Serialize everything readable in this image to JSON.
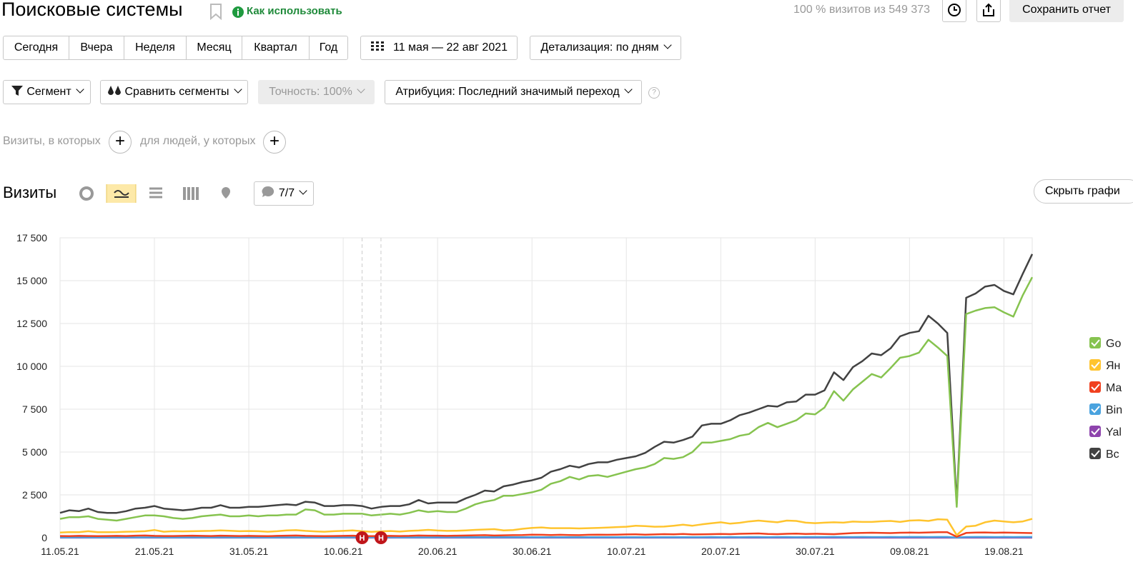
{
  "header": {
    "title": "Поисковые системы",
    "help_link": "Как использовать",
    "visits_share": "100 % визитов из 549 373",
    "save_button": "Сохранить отчет"
  },
  "periods": [
    "Сегодня",
    "Вчера",
    "Неделя",
    "Месяц",
    "Квартал",
    "Год"
  ],
  "date_range": "11 мая — 22 авг 2021",
  "detail": "Детализация: по дням",
  "filters": {
    "segment": "Сегмент",
    "compare": "Сравнить сегменты",
    "accuracy": "Точность: 100%",
    "attribution": "Атрибуция: Последний значимый переход"
  },
  "conditions": {
    "visits": "Визиты, в которых",
    "people": "для людей, у которых"
  },
  "chart_header": {
    "title": "Визиты",
    "notes": "7/7",
    "hide_button": "Скрыть графи"
  },
  "chart_data": {
    "type": "line",
    "categories": [
      "11.05.21",
      null,
      null,
      null,
      null,
      null,
      null,
      null,
      null,
      null,
      "21.05.21",
      null,
      null,
      null,
      null,
      null,
      null,
      null,
      null,
      null,
      "31.05.21",
      null,
      null,
      null,
      null,
      null,
      null,
      null,
      null,
      null,
      "10.06.21",
      null,
      null,
      null,
      null,
      null,
      null,
      null,
      null,
      null,
      "20.06.21",
      null,
      null,
      null,
      null,
      null,
      null,
      null,
      null,
      null,
      "30.06.21",
      null,
      null,
      null,
      null,
      null,
      null,
      null,
      null,
      null,
      "10.07.21",
      null,
      null,
      null,
      null,
      null,
      null,
      null,
      null,
      null,
      "20.07.21",
      null,
      null,
      null,
      null,
      null,
      null,
      null,
      null,
      null,
      "30.07.21",
      null,
      null,
      null,
      null,
      null,
      null,
      null,
      null,
      null,
      "09.08.21",
      null,
      null,
      null,
      null,
      null,
      null,
      null,
      null,
      null,
      "19.08.21",
      null,
      null,
      null
    ],
    "ylim": [
      0,
      17500
    ],
    "yticks": [
      0,
      {
        "value": 2500,
        "label": "2 500"
      },
      {
        "value": 5000,
        "label": "5 000"
      },
      {
        "value": 7500,
        "label": "7 500"
      },
      {
        "value": 10000,
        "label": "10 000"
      },
      {
        "value": 12500,
        "label": "12 500"
      },
      {
        "value": 15000,
        "label": "15 000"
      },
      {
        "value": 17500,
        "label": "17 500"
      }
    ],
    "grid": true,
    "annotations": [
      {
        "label": "Н"
      },
      {
        "label": "Н"
      }
    ],
    "series": [
      {
        "name": "Go",
        "color": "#86c34f",
        "values": [
          1100,
          1200,
          1200,
          1250,
          1100,
          1050,
          1000,
          1100,
          1200,
          1300,
          1300,
          1250,
          1150,
          1100,
          1150,
          1250,
          1300,
          1350,
          1250,
          1250,
          1300,
          1250,
          1300,
          1300,
          1350,
          1350,
          1650,
          1600,
          1350,
          1350,
          1400,
          1400,
          1400,
          1300,
          1350,
          1400,
          1350,
          1450,
          1600,
          1500,
          1550,
          1500,
          1500,
          1700,
          1950,
          2100,
          2200,
          2450,
          2450,
          2550,
          2650,
          2800,
          3150,
          3300,
          3550,
          3400,
          3600,
          3650,
          3550,
          3700,
          3850,
          4000,
          4100,
          4300,
          4650,
          4600,
          4700,
          5000,
          5550,
          5550,
          5650,
          5750,
          5950,
          6050,
          6450,
          6700,
          6450,
          6650,
          6850,
          7250,
          7200,
          7600,
          8550,
          8000,
          8650,
          9100,
          9550,
          9350,
          9900,
          10500,
          10600,
          10800,
          11550,
          11100,
          10600,
          1800,
          13050,
          13250,
          13400,
          13450,
          13150,
          12900,
          14150,
          15200
        ]
      },
      {
        "name": "Ян",
        "color": "#ffc42e",
        "values": [
          300,
          330,
          320,
          380,
          320,
          320,
          330,
          350,
          360,
          380,
          450,
          350,
          380,
          370,
          380,
          390,
          400,
          430,
          410,
          380,
          390,
          380,
          350,
          380,
          430,
          440,
          400,
          370,
          350,
          380,
          400,
          430,
          380,
          340,
          370,
          390,
          360,
          400,
          420,
          460,
          420,
          400,
          410,
          430,
          460,
          480,
          500,
          430,
          450,
          520,
          570,
          600,
          560,
          560,
          560,
          540,
          560,
          570,
          590,
          620,
          640,
          700,
          680,
          640,
          650,
          700,
          760,
          700,
          780,
          840,
          900,
          820,
          870,
          950,
          1000,
          950,
          900,
          1000,
          980,
          880,
          850,
          880,
          900,
          880,
          940,
          920,
          920,
          960,
          980,
          920,
          1000,
          1020,
          980,
          1080,
          1050,
          150,
          650,
          700,
          900,
          1000,
          950,
          900,
          950,
          1100
        ]
      },
      {
        "name": "Ma",
        "color": "#f0401f",
        "values": [
          100,
          90,
          110,
          100,
          90,
          100,
          110,
          100,
          120,
          130,
          110,
          100,
          100,
          110,
          120,
          110,
          100,
          120,
          110,
          100,
          110,
          100,
          90,
          110,
          120,
          130,
          110,
          100,
          90,
          100,
          110,
          120,
          100,
          90,
          100,
          110,
          100,
          110,
          130,
          120,
          120,
          110,
          120,
          130,
          140,
          150,
          130,
          140,
          150,
          160,
          180,
          170,
          160,
          170,
          160,
          150,
          170,
          180,
          170,
          180,
          190,
          200,
          180,
          190,
          210,
          200,
          220,
          190,
          200,
          210,
          220,
          210,
          230,
          240,
          250,
          220,
          210,
          230,
          240,
          220,
          230,
          220,
          210,
          240,
          270,
          280,
          290,
          280,
          270,
          290,
          300,
          290,
          310,
          320,
          320,
          60,
          280,
          300,
          310,
          290,
          300,
          290,
          280,
          270
        ]
      },
      {
        "name": "Bin",
        "color": "#4aa3df",
        "values": [
          20,
          20,
          25,
          20,
          20,
          20,
          20,
          25,
          20,
          20,
          25,
          20,
          20,
          20,
          25,
          20,
          20,
          25,
          20,
          20,
          20,
          25,
          20,
          20,
          25,
          20,
          20,
          20,
          25,
          20,
          20,
          25,
          20,
          20,
          20,
          25,
          20,
          20,
          25,
          20,
          30,
          30,
          35,
          30,
          30,
          30,
          35,
          30,
          30,
          35,
          30,
          35,
          30,
          30,
          35,
          30,
          30,
          35,
          30,
          30,
          35,
          35,
          30,
          35,
          35,
          35,
          30,
          35,
          35,
          40,
          35,
          40,
          35,
          40,
          40,
          35,
          40,
          40,
          35,
          40,
          40,
          40,
          45,
          40,
          40,
          45,
          40,
          40,
          45,
          40,
          45,
          45,
          40,
          45,
          45,
          10,
          40,
          45,
          45,
          40,
          45,
          40,
          45,
          45
        ]
      },
      {
        "name": "Yal",
        "color": "#8e44ad",
        "values": [
          5,
          5,
          5,
          5,
          5,
          5,
          5,
          5,
          5,
          5,
          5,
          5,
          5,
          5,
          5,
          5,
          5,
          5,
          5,
          5,
          5,
          5,
          5,
          5,
          5,
          5,
          5,
          5,
          5,
          5,
          5,
          5,
          5,
          5,
          5,
          5,
          5,
          5,
          5,
          5,
          5,
          5,
          5,
          5,
          5,
          5,
          5,
          5,
          5,
          5,
          5,
          5,
          5,
          5,
          5,
          5,
          5,
          5,
          5,
          5,
          5,
          5,
          5,
          5,
          5,
          5,
          5,
          5,
          5,
          5,
          5,
          5,
          5,
          5,
          5,
          5,
          5,
          5,
          5,
          5,
          5,
          5,
          5,
          5,
          5,
          5,
          5,
          5,
          5,
          5,
          5,
          5,
          5,
          5,
          5,
          1,
          5,
          5,
          5,
          5,
          5,
          5,
          5,
          5
        ]
      },
      {
        "name": "Вс",
        "color": "#424242",
        "values": [
          1450,
          1600,
          1550,
          1700,
          1500,
          1450,
          1450,
          1550,
          1700,
          1750,
          1850,
          1700,
          1650,
          1600,
          1650,
          1750,
          1750,
          1900,
          1750,
          1750,
          1800,
          1800,
          1850,
          1900,
          1950,
          1900,
          2100,
          2050,
          1850,
          1850,
          1900,
          1900,
          1850,
          1700,
          1800,
          1850,
          1850,
          1950,
          2200,
          2000,
          2050,
          2050,
          2050,
          2300,
          2500,
          2750,
          2700,
          3000,
          3100,
          3250,
          3350,
          3500,
          3850,
          4000,
          4200,
          4100,
          4300,
          4400,
          4400,
          4550,
          4650,
          4750,
          4950,
          5300,
          5600,
          5550,
          5700,
          5900,
          6550,
          6650,
          6650,
          6850,
          7150,
          7300,
          7500,
          7700,
          7650,
          7900,
          7950,
          8350,
          8350,
          8600,
          9650,
          9200,
          9950,
          10300,
          10750,
          10650,
          11050,
          11750,
          11950,
          12050,
          12950,
          12500,
          11950,
          2000,
          14000,
          14250,
          14650,
          14750,
          14400,
          14200,
          15400,
          16550
        ]
      }
    ]
  }
}
